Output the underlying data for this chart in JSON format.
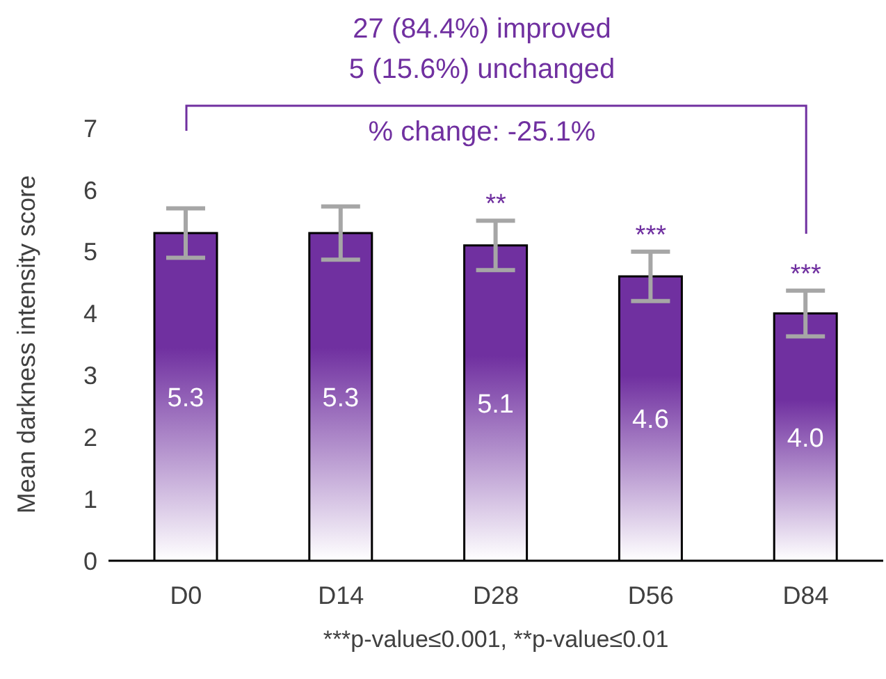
{
  "chart_data": {
    "type": "bar",
    "ylabel": "Mean darkness intensity score",
    "categories": [
      "D0",
      "D14",
      "D28",
      "D56",
      "D84"
    ],
    "values": [
      5.3,
      5.3,
      5.1,
      4.6,
      4.0
    ],
    "errors": [
      0.4,
      0.43,
      0.4,
      0.4,
      0.37
    ],
    "color": "#7030a0",
    "value_labels": [
      "5.3",
      "5.3",
      "5.1",
      "4.6",
      "4.0"
    ],
    "ylim": [
      0,
      7
    ],
    "yticks": [
      0,
      1,
      2,
      3,
      4,
      5,
      6,
      7
    ],
    "annotations": [
      "27 (84.4%) improved",
      "5 (15.6%) unchanged",
      "% change: -25.1%",
      {
        "text": "**",
        "x": "D28",
        "y": 5.5
      },
      {
        "text": "***",
        "x": "D56",
        "y": 5.0
      },
      {
        "text": "***",
        "x": "D84",
        "y": 4.37
      },
      "***p-value≤0.001, **p-value≤0.01"
    ]
  }
}
